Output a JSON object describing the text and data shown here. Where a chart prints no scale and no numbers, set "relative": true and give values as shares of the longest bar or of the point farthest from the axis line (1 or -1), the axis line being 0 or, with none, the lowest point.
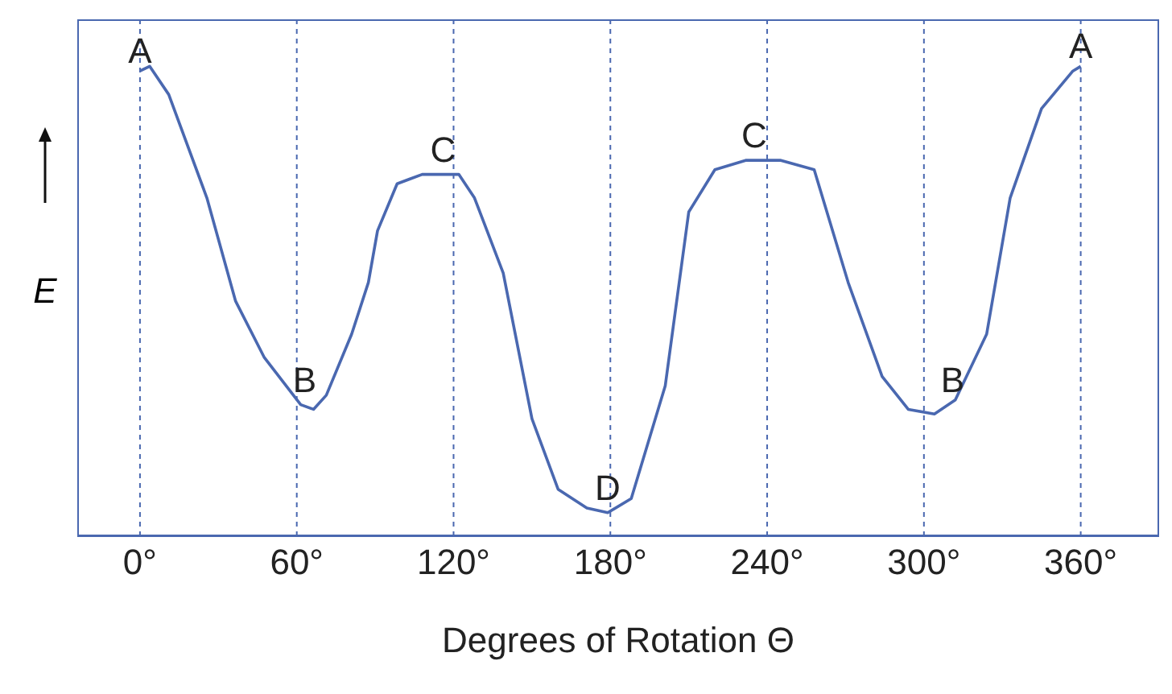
{
  "chart_data": {
    "type": "line",
    "relative": true,
    "xlabel": "Degrees of Rotation Θ",
    "ylabel": "E",
    "color": "#4a68b0",
    "marker": "none",
    "grid": "x",
    "xlim": [
      -24,
      390
    ],
    "xticks": [
      {
        "value": 0,
        "label": "0°"
      },
      {
        "value": 60,
        "label": "60°"
      },
      {
        "value": 120,
        "label": "120°"
      },
      {
        "value": 180,
        "label": "180°"
      },
      {
        "value": 240,
        "label": "240°"
      },
      {
        "value": 300,
        "label": "300°"
      },
      {
        "value": 360,
        "label": "360°"
      }
    ],
    "x": [
      0,
      3.7,
      11,
      25.6,
      36.6,
      47.6,
      61.5,
      66.4,
      71.3,
      81,
      87.4,
      90.9,
      98.4,
      108,
      122,
      128,
      139,
      150,
      160,
      171,
      179,
      188,
      201,
      210,
      220,
      232,
      245,
      258,
      271,
      284,
      294,
      304,
      312,
      324,
      333,
      345,
      357,
      360
    ],
    "values": [
      0.99,
      1.0,
      0.94,
      0.72,
      0.5,
      0.38,
      0.28,
      0.27,
      0.3,
      0.43,
      0.54,
      0.65,
      0.75,
      0.77,
      0.77,
      0.72,
      0.56,
      0.25,
      0.1,
      0.06,
      0.05,
      0.08,
      0.32,
      0.69,
      0.78,
      0.8,
      0.8,
      0.78,
      0.54,
      0.34,
      0.27,
      0.26,
      0.29,
      0.43,
      0.72,
      0.91,
      0.99,
      1.0
    ],
    "annotations": [
      {
        "text": "A",
        "x": 0,
        "y": 0.99
      },
      {
        "text": "B",
        "x": 63,
        "y": 0.29
      },
      {
        "text": "C",
        "x": 116,
        "y": 0.78
      },
      {
        "text": "D",
        "x": 179,
        "y": 0.06
      },
      {
        "text": "C",
        "x": 235,
        "y": 0.81
      },
      {
        "text": "B",
        "x": 311,
        "y": 0.29
      },
      {
        "text": "A",
        "x": 360,
        "y": 1.0
      }
    ]
  }
}
